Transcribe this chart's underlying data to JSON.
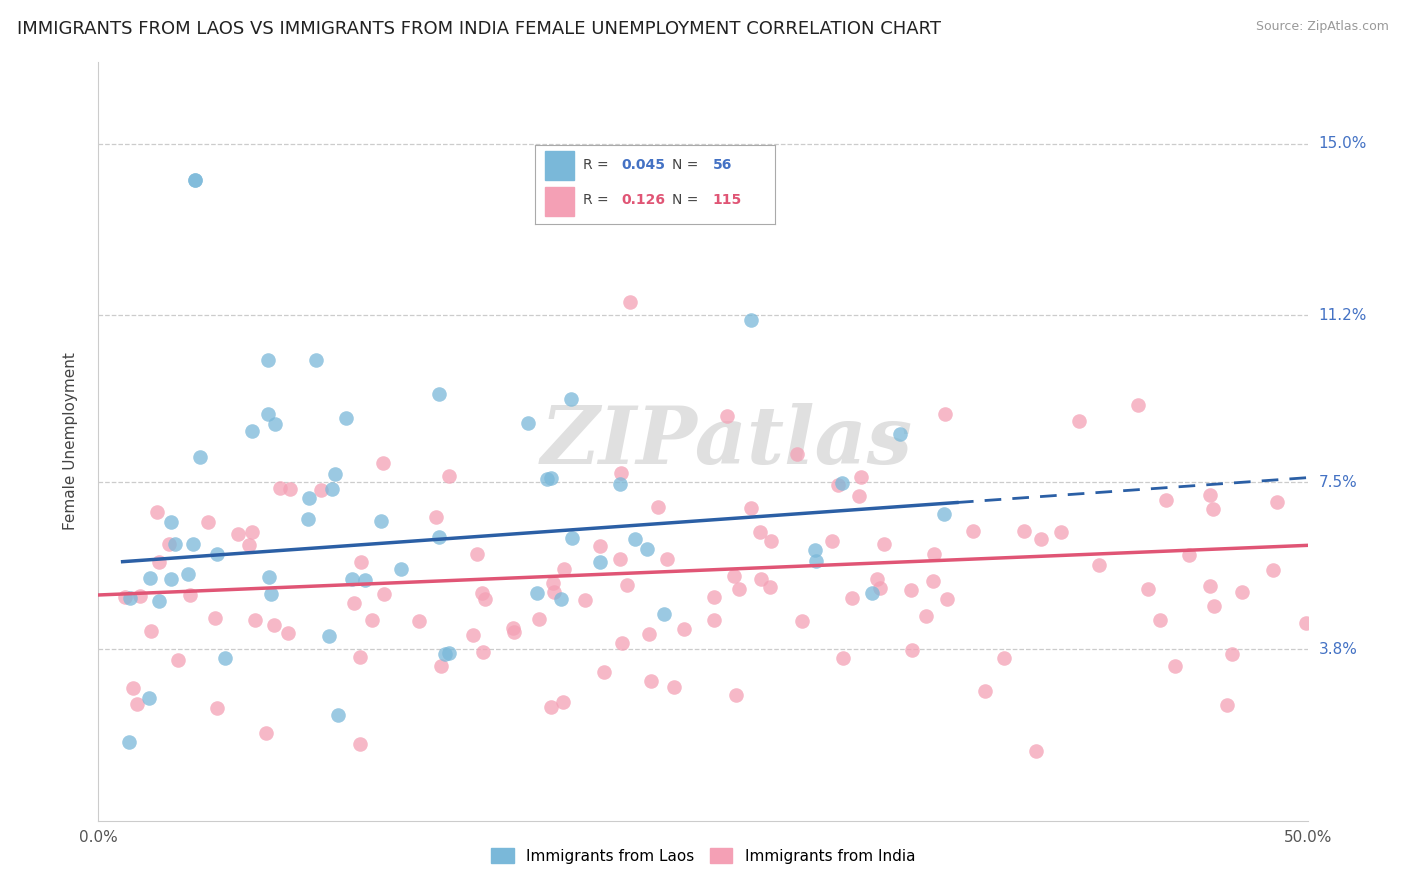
{
  "title": "IMMIGRANTS FROM LAOS VS IMMIGRANTS FROM INDIA FEMALE UNEMPLOYMENT CORRELATION CHART",
  "source": "Source: ZipAtlas.com",
  "ylabel": "Female Unemployment",
  "xlim": [
    0.0,
    0.5
  ],
  "ylim": [
    0.0,
    0.168
  ],
  "yticks": [
    0.038,
    0.075,
    0.112,
    0.15
  ],
  "ytick_labels": [
    "3.8%",
    "7.5%",
    "11.2%",
    "15.0%"
  ],
  "xticks": [
    0.0,
    0.5
  ],
  "xtick_labels": [
    "0.0%",
    "50.0%"
  ],
  "legend1_label": "Immigrants from Laos",
  "legend2_label": "Immigrants from India",
  "r1": "0.045",
  "n1": "56",
  "r2": "0.126",
  "n2": "115",
  "blue_color": "#7ab8d9",
  "blue_line_color": "#2b5fa5",
  "pink_color": "#f4a0b5",
  "pink_line_color": "#e05575",
  "watermark": "ZIPatlas",
  "title_fontsize": 13,
  "label_fontsize": 11,
  "tick_fontsize": 11
}
